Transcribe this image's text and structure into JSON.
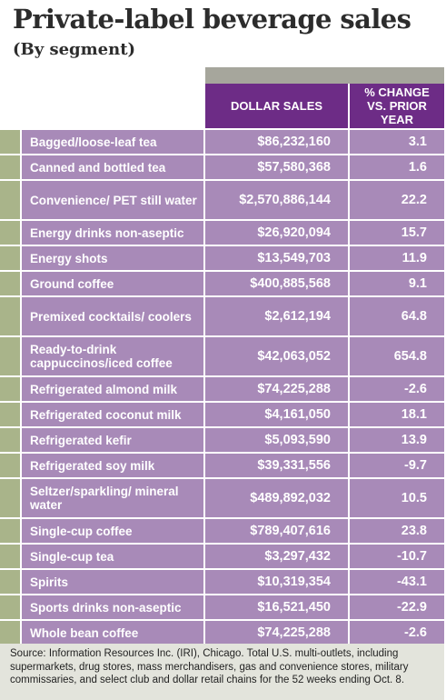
{
  "title": "Private-label beverage sales",
  "subtitle": "(By segment)",
  "columns": {
    "sales": "DOLLAR SALES",
    "change": "% CHANGE VS. PRIOR YEAR"
  },
  "rows": [
    {
      "name": "Bagged/loose-leaf tea",
      "sales": "$86,232,160",
      "change": "3.1"
    },
    {
      "name": "Canned and bottled tea",
      "sales": "$57,580,368",
      "change": "1.6"
    },
    {
      "name": "Convenience/ PET still water",
      "sales": "$2,570,886,144",
      "change": "22.2"
    },
    {
      "name": "Energy drinks non-aseptic",
      "sales": "$26,920,094",
      "change": "15.7"
    },
    {
      "name": "Energy shots",
      "sales": "$13,549,703",
      "change": "11.9"
    },
    {
      "name": "Ground coffee",
      "sales": "$400,885,568",
      "change": "9.1"
    },
    {
      "name": "Premixed cocktails/ coolers",
      "sales": "$2,612,194",
      "change": "64.8"
    },
    {
      "name": "Ready-to-drink cappuccinos/iced coffee",
      "sales": "$42,063,052",
      "change": "654.8"
    },
    {
      "name": "Refrigerated almond milk",
      "sales": "$74,225,288",
      "change": "-2.6"
    },
    {
      "name": "Refrigerated coconut milk",
      "sales": "$4,161,050",
      "change": "18.1"
    },
    {
      "name": "Refrigerated kefir",
      "sales": "$5,093,590",
      "change": "13.9"
    },
    {
      "name": "Refrigerated soy milk",
      "sales": "$39,331,556",
      "change": "-9.7"
    },
    {
      "name": "Seltzer/sparkling/ mineral water",
      "sales": "$489,892,032",
      "change": "10.5"
    },
    {
      "name": "Single-cup coffee",
      "sales": "$789,407,616",
      "change": "23.8"
    },
    {
      "name": "Single-cup tea",
      "sales": "$3,297,432",
      "change": "-10.7"
    },
    {
      "name": "Spirits",
      "sales": "$10,319,354",
      "change": "-43.1"
    },
    {
      "name": "Sports drinks non-aseptic",
      "sales": "$16,521,450",
      "change": "-22.9"
    },
    {
      "name": "Whole bean coffee",
      "sales": "$74,225,288",
      "change": "-2.6"
    }
  ],
  "source": "Source: Information Resources Inc. (IRI), Chicago. Total U.S. multi-outlets, including supermarkets, drug stores, mass merchandisers, gas and convenience stores, military commissaries, and select club and dollar retail chains for the 52 weeks ending Oct. 8.",
  "colors": {
    "header": "#6d2c86",
    "cell": "#a88ab8",
    "tab": "#a9b48a",
    "gray_bar": "#a6a69c",
    "source_bg": "#e3e4dc"
  }
}
